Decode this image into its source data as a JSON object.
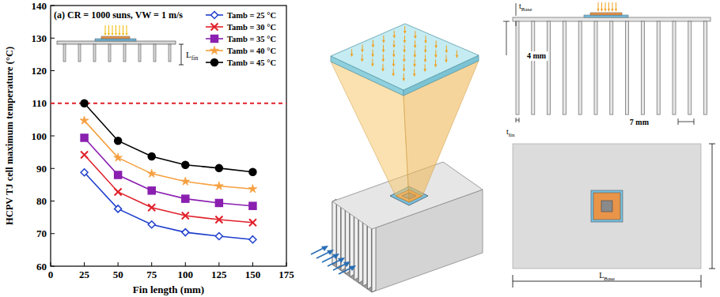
{
  "chart_data": {
    "type": "line",
    "title": "(a) CR = 1000 suns, VW = 1 m/s",
    "x_label": "Fin length (mm)",
    "y_label": "HCPV TJ cell maximum temperature (°C)",
    "x": [
      25,
      50,
      75,
      100,
      125,
      150
    ],
    "xlim": [
      0,
      175
    ],
    "xticks": [
      0,
      25,
      50,
      75,
      100,
      125,
      150,
      175
    ],
    "ylim": [
      60,
      140
    ],
    "yticks": [
      60,
      70,
      80,
      90,
      100,
      110,
      120,
      130,
      140
    ],
    "threshold": 110,
    "legend": "upper right",
    "series": [
      {
        "name": "Tamb = 25 °C",
        "color": "#1f3fcc",
        "marker": "diamond",
        "values": [
          88.8,
          77.6,
          72.8,
          70.4,
          69.2,
          68.2
        ]
      },
      {
        "name": "Tamb = 30 °C",
        "color": "#e0202a",
        "marker": "x",
        "values": [
          94.2,
          82.8,
          78.0,
          75.5,
          74.3,
          73.4
        ]
      },
      {
        "name": "Tamb = 35 °C",
        "color": "#8a1fb0",
        "marker": "square",
        "values": [
          99.4,
          88.0,
          83.2,
          80.7,
          79.4,
          78.5
        ]
      },
      {
        "name": "Tamb = 40 °C",
        "color": "#f5a040",
        "marker": "star",
        "values": [
          104.7,
          93.3,
          88.4,
          86.0,
          84.6,
          83.7
        ]
      },
      {
        "name": "Tamb = 45 °C",
        "color": "#000000",
        "marker": "circle",
        "values": [
          110.0,
          98.5,
          93.7,
          91.1,
          90.1,
          88.9
        ]
      }
    ]
  },
  "diagram": {
    "inset_label": {
      "main": "L",
      "sub": "fin"
    },
    "t_base": {
      "main": "t",
      "sub": "Base"
    },
    "fin_pitch": "4 mm",
    "t_fin": {
      "main": "t",
      "sub": "fin"
    },
    "fin_gap": "7 mm",
    "l_base": {
      "main": "L",
      "sub": "Base"
    }
  }
}
